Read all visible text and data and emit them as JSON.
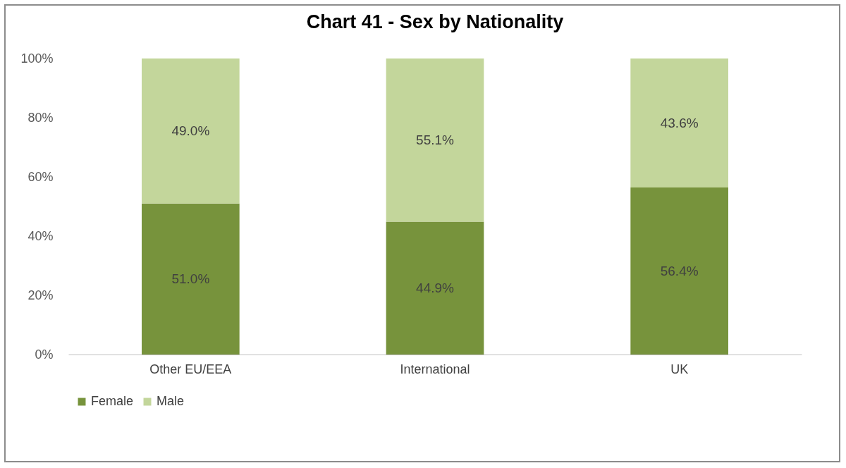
{
  "chart_data": {
    "type": "bar",
    "stacked": true,
    "title": "Chart 41 - Sex by Nationality",
    "categories": [
      "Other EU/EEA",
      "International",
      "UK"
    ],
    "series": [
      {
        "name": "Female",
        "color": "#77933c",
        "values": [
          51.0,
          44.9,
          56.4
        ],
        "value_labels": [
          "51.0%",
          "44.9%",
          "56.4%"
        ]
      },
      {
        "name": "Male",
        "color": "#c3d69b",
        "values": [
          49.0,
          55.1,
          43.6
        ],
        "value_labels": [
          "49.0%",
          "55.1%",
          "43.6%"
        ]
      }
    ],
    "ylim": [
      0,
      100
    ],
    "yticks": [
      {
        "value": 0,
        "label": "0%"
      },
      {
        "value": 20,
        "label": "20%"
      },
      {
        "value": 40,
        "label": "40%"
      },
      {
        "value": 60,
        "label": "60%"
      },
      {
        "value": 80,
        "label": "80%"
      },
      {
        "value": 100,
        "label": "100%"
      }
    ],
    "grid": false,
    "legend": "bottom"
  }
}
